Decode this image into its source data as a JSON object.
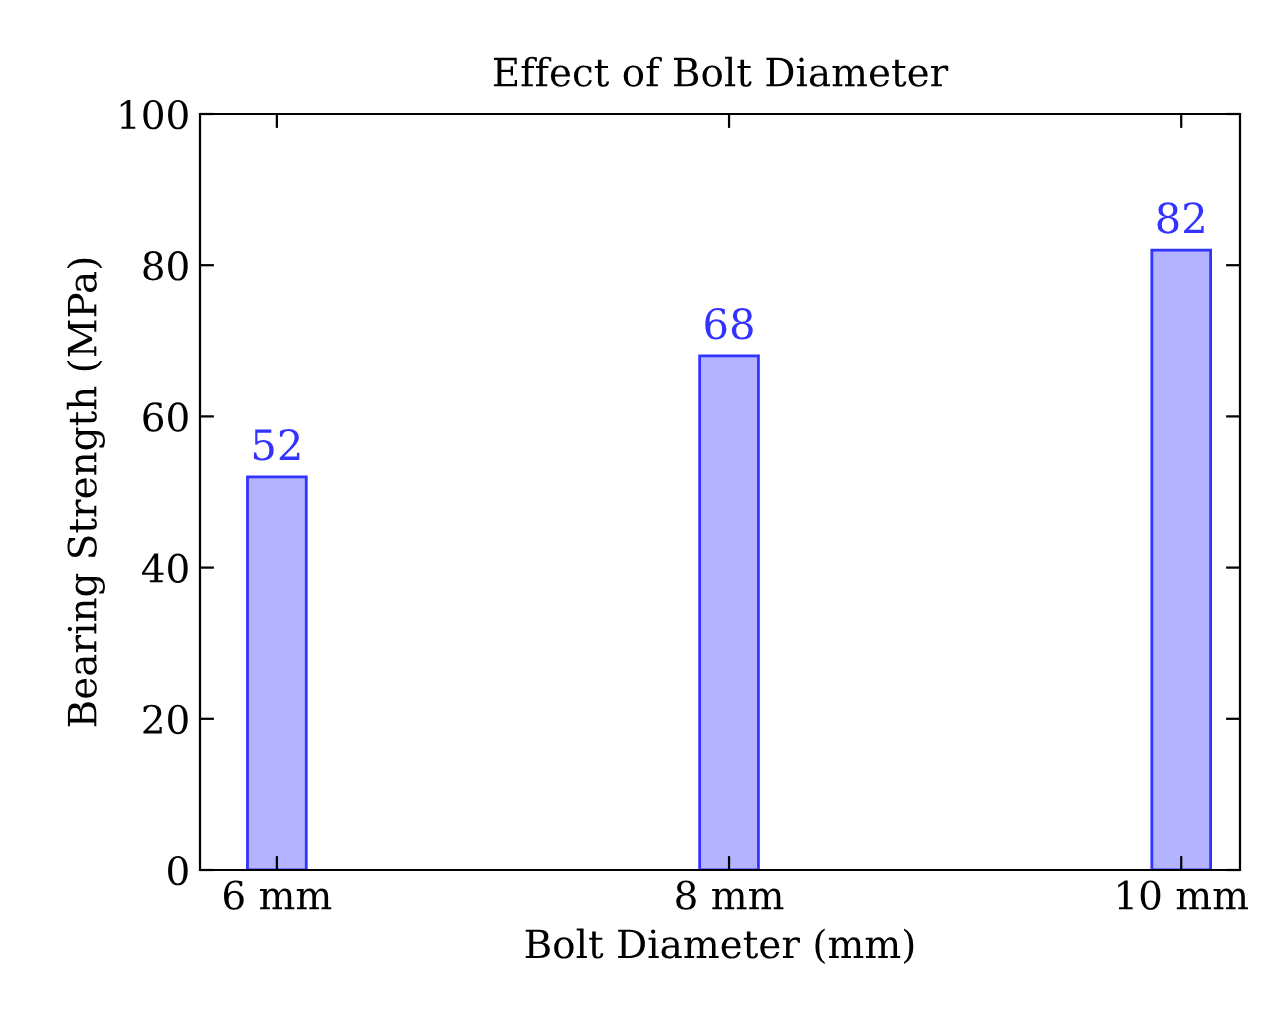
{
  "chart_data": {
    "type": "bar",
    "title": "Effect of Bolt Diameter",
    "xlabel": "Bolt Diameter (mm)",
    "ylabel": "Bearing Strength (MPa)",
    "categories": [
      "6 mm",
      "8 mm",
      "10 mm"
    ],
    "series": [
      {
        "color": "#b3b3ff",
        "values": [
          52,
          68,
          82
        ]
      }
    ],
    "ylim": [
      0,
      100
    ],
    "yticks": [
      0,
      20,
      40,
      60,
      80,
      100
    ],
    "grid": false,
    "data_labels": true
  }
}
